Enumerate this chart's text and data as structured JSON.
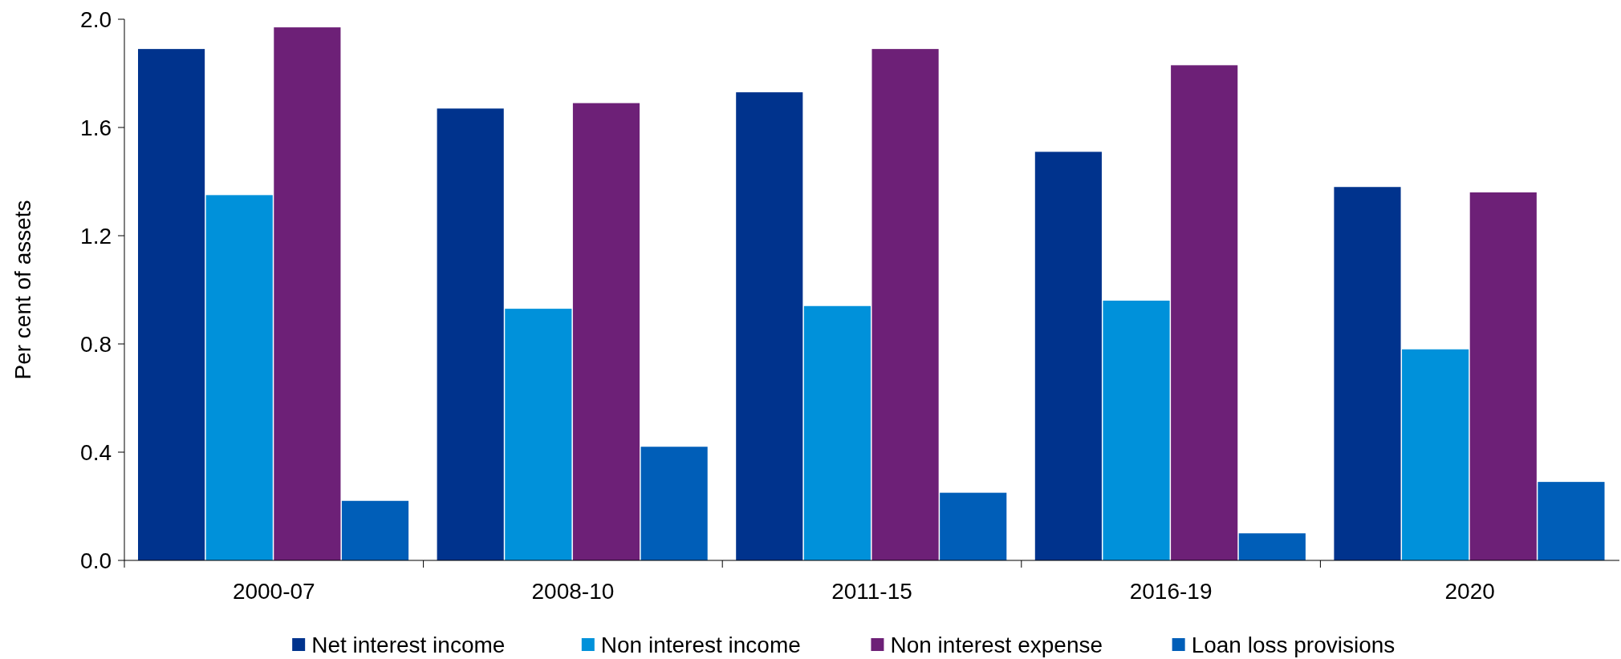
{
  "chart_data": {
    "type": "bar",
    "ylabel": "Per cent of assets",
    "categories": [
      "2000-07",
      "2008-10",
      "2011-15",
      "2016-19",
      "2020"
    ],
    "series": [
      {
        "name": "Net interest income",
        "color": "#00338d",
        "values": [
          1.89,
          1.67,
          1.73,
          1.51,
          1.38
        ]
      },
      {
        "name": "Non interest income",
        "color": "#0091da",
        "values": [
          1.35,
          0.93,
          0.94,
          0.96,
          0.78
        ]
      },
      {
        "name": "Non interest expense",
        "color": "#6d2077",
        "values": [
          1.97,
          1.69,
          1.89,
          1.83,
          1.36
        ]
      },
      {
        "name": "Loan loss provisions",
        "color": "#005eb8",
        "values": [
          0.22,
          0.42,
          0.25,
          0.1,
          0.29
        ]
      }
    ],
    "ylim": [
      0,
      2
    ],
    "yticks": [
      {
        "value": 0,
        "label": "0.0"
      },
      {
        "value": 0.4,
        "label": "0.4"
      },
      {
        "value": 0.8,
        "label": "0.8"
      },
      {
        "value": 1.2,
        "label": "1.2"
      },
      {
        "value": 1.6,
        "label": "1.6"
      },
      {
        "value": 2,
        "label": "2.0"
      }
    ],
    "grid": false,
    "legend": "bottom"
  }
}
